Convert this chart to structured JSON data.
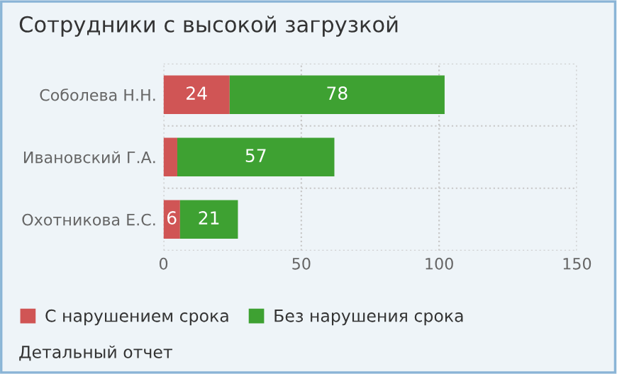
{
  "chart_data": {
    "type": "bar",
    "orientation": "horizontal",
    "stacked": true,
    "title": "Сотрудники с высокой загрузкой",
    "categories": [
      "Соболева Н.Н.",
      "Ивановский Г.А.",
      "Охотникова Е.С."
    ],
    "series": [
      {
        "name": "С нарушением срока",
        "color": "#d05555",
        "values": [
          24,
          5,
          6
        ],
        "value_labels": [
          "24",
          null,
          "6"
        ]
      },
      {
        "name": "Без нарушения срока",
        "color": "#3ea132",
        "values": [
          78,
          57,
          21
        ],
        "value_labels": [
          "78",
          "57",
          "21"
        ]
      }
    ],
    "xlim": [
      0,
      150
    ],
    "xticks": [
      0,
      50,
      100,
      150
    ],
    "grid": true,
    "legend": "bottom left",
    "annotations": [
      "Детальный отчет"
    ]
  }
}
